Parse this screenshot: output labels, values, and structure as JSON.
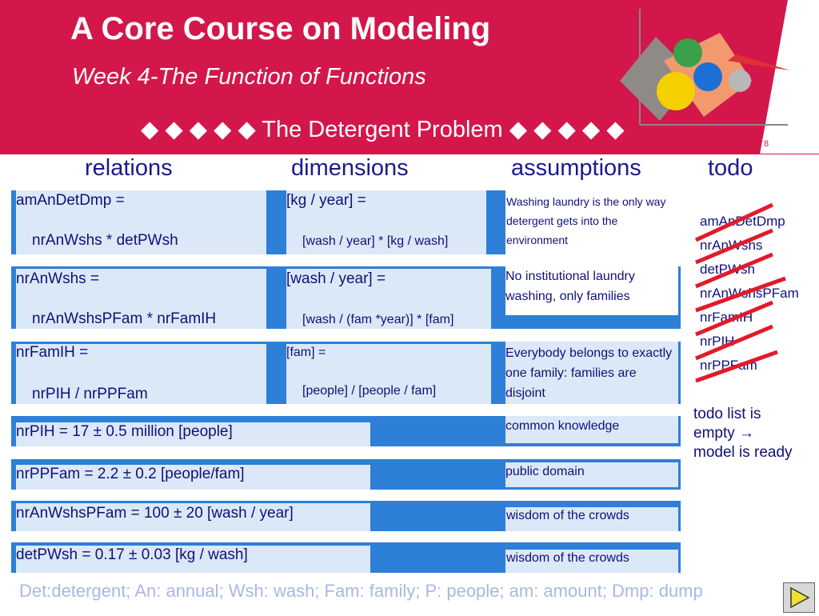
{
  "header": {
    "title": "A Core Course on Modeling",
    "subtitle": "Week 4-The Function of Functions",
    "section": "◆ ◆ ◆ ◆ ◆ The Detergent Problem ◆ ◆ ◆ ◆ ◆",
    "page_number": "8"
  },
  "columns": {
    "relations": "relations",
    "dimensions": "dimensions",
    "assumptions": "assumptions",
    "todo": "todo"
  },
  "rows": [
    {
      "rel1": "amAnDetDmp =",
      "rel2": "nrAnWshs * detPWsh",
      "dim1": "[kg / year] =",
      "dim2": "[wash / year] * [kg / wash]",
      "assumption": "Washing laundry is the only way detergent gets into the environment"
    },
    {
      "rel1": "nrAnWshs =",
      "rel2": "nrAnWshsPFam * nrFamIH",
      "dim1": "[wash / year] =",
      "dim2": "[wash / (fam *year)] * [fam]",
      "assumption": "No institutional laundry washing, only families"
    },
    {
      "rel1": "nrFamIH =",
      "rel2": "nrPIH / nrPPFam",
      "dim1": "[fam] =",
      "dim2": "[people] / [people / fam]",
      "assumption": "Everybody belongs to exactly one family: families are disjoint"
    },
    {
      "rel1": "nrPIH = 17 ± 0.5 million [people]",
      "assumption": "common knowledge"
    },
    {
      "rel1": "nrPPFam = 2.2 ± 0.2 [people/fam]",
      "assumption": "public domain"
    },
    {
      "rel1": "nrAnWshsPFam = 100 ± 20  [wash / year]",
      "assumption": "wisdom of the crowds"
    },
    {
      "rel1": "detPWsh = 0.17 ± 0.03 [kg / wash]",
      "assumption": "wisdom of the crowds"
    }
  ],
  "todo": {
    "items": [
      "amAnDetDmp",
      "nrAnWshs",
      "detPWsh",
      "nrAnWshsPFam",
      "nrFamIH",
      "nrPIH",
      "nrPPFam"
    ],
    "note_line1": "todo list is",
    "note_line2": "empty →",
    "note_line3": "model is ready",
    "strike_color": "#e21a2a"
  },
  "footer": "Det:detergent; An: annual; Wsh: wash; Fam: family; P: people; am: amount; Dmp: dump",
  "colors": {
    "header_red": "#d4174b",
    "band_blue": "#2e7fd8",
    "cell_fill": "#dbe8f7",
    "text_navy": "#10107a"
  }
}
